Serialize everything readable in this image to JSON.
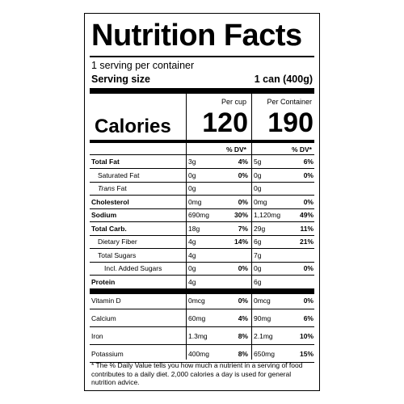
{
  "title": "Nutrition Facts",
  "servings_per_container": "1 serving per container",
  "serving_size_label": "Serving size",
  "serving_size_value": "1 can (400g)",
  "calories": {
    "label": "Calories",
    "col1_header": "Per cup",
    "col2_header": "Per Container",
    "col1_value": "120",
    "col2_value": "190"
  },
  "dv_header": "% DV*",
  "nutrients": [
    {
      "name": "Total Fat",
      "bold": true,
      "indent": 0,
      "v1": "3g",
      "p1": "4%",
      "v2": "5g",
      "p2": "6%"
    },
    {
      "name": "Saturated Fat",
      "bold": false,
      "indent": 1,
      "v1": "0g",
      "p1": "0%",
      "v2": "0g",
      "p2": "0%"
    },
    {
      "name": "Trans Fat",
      "bold": false,
      "indent": 1,
      "italic_prefix": "Trans",
      "v1": "0g",
      "p1": "",
      "v2": "0g",
      "p2": ""
    },
    {
      "name": "Cholesterol",
      "bold": true,
      "indent": 0,
      "v1": "0mg",
      "p1": "0%",
      "v2": "0mg",
      "p2": "0%"
    },
    {
      "name": "Sodium",
      "bold": true,
      "indent": 0,
      "v1": "690mg",
      "p1": "30%",
      "v2": "1,120mg",
      "p2": "49%"
    },
    {
      "name": "Total Carb.",
      "bold": true,
      "indent": 0,
      "v1": "18g",
      "p1": "7%",
      "v2": "29g",
      "p2": "11%"
    },
    {
      "name": "Dietary Fiber",
      "bold": false,
      "indent": 1,
      "v1": "4g",
      "p1": "14%",
      "v2": "6g",
      "p2": "21%"
    },
    {
      "name": "Total Sugars",
      "bold": false,
      "indent": 1,
      "v1": "4g",
      "p1": "",
      "v2": "7g",
      "p2": ""
    },
    {
      "name": "Incl. Added Sugars",
      "bold": false,
      "indent": 2,
      "v1": "0g",
      "p1": "0%",
      "v2": "0g",
      "p2": "0%"
    },
    {
      "name": "Protein",
      "bold": true,
      "indent": 0,
      "v1": "4g",
      "p1": "",
      "v2": "6g",
      "p2": ""
    }
  ],
  "vitamins": [
    {
      "name": "Vitamin D",
      "v1": "0mcg",
      "p1": "0%",
      "v2": "0mcg",
      "p2": "0%"
    },
    {
      "name": "Calcium",
      "v1": "60mg",
      "p1": "4%",
      "v2": "90mg",
      "p2": "6%"
    },
    {
      "name": "Iron",
      "v1": "1.3mg",
      "p1": "8%",
      "v2": "2.1mg",
      "p2": "10%"
    },
    {
      "name": "Potassium",
      "v1": "400mg",
      "p1": "8%",
      "v2": "650mg",
      "p2": "15%"
    }
  ],
  "footnote": "* The % Daily Value tells you how much a nutrient in a serving of food contributes to a daily diet. 2,000 calories a day is used for general nutrition advice."
}
